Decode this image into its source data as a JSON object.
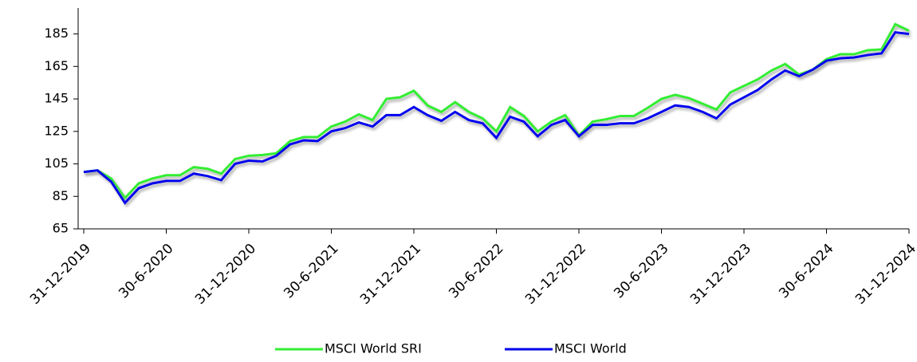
{
  "chart_data": {
    "type": "line",
    "categories": [
      "31-12-2019",
      null,
      null,
      null,
      null,
      null,
      "30-6-2020",
      null,
      null,
      null,
      null,
      null,
      "31-12-2020",
      null,
      null,
      null,
      null,
      null,
      "30-6-2021",
      null,
      null,
      null,
      null,
      null,
      "31-12-2021",
      null,
      null,
      null,
      null,
      null,
      "30-6-2022",
      null,
      null,
      null,
      null,
      null,
      "31-12-2022",
      null,
      null,
      null,
      null,
      null,
      "30-6-2023",
      null,
      null,
      null,
      null,
      null,
      "31-12-2023",
      null,
      null,
      null,
      null,
      null,
      "30-6-2024",
      null,
      null,
      null,
      null,
      null,
      "31-12-2024"
    ],
    "series": [
      {
        "name": "MSCI World SRI",
        "color": "#33ee33",
        "values": [
          100,
          101,
          96,
          84,
          93,
          96,
          98,
          98,
          103,
          102,
          99,
          108,
          110,
          110.5,
          111.5,
          119,
          121.5,
          121.5,
          128,
          131,
          135.5,
          132,
          145,
          146,
          150,
          141,
          137,
          143,
          137,
          133,
          125,
          140,
          134.5,
          125,
          131,
          135,
          122.5,
          131,
          132.5,
          134.5,
          134.5,
          139.5,
          145,
          147.5,
          145.5,
          142,
          138.5,
          149,
          153,
          157,
          162.5,
          166.5,
          160,
          163,
          169.5,
          172.5,
          172.5,
          175,
          175.5,
          191,
          187
        ]
      },
      {
        "name": "MSCI World",
        "color": "#0000ee",
        "values": [
          100,
          101,
          94,
          81,
          90,
          93,
          94.5,
          94.5,
          99,
          97.5,
          95,
          105,
          107,
          106.5,
          110,
          117,
          119.5,
          119,
          125,
          127,
          130.5,
          128,
          135,
          135,
          140,
          135,
          131.5,
          137,
          132,
          130,
          121,
          134,
          131,
          122,
          129,
          132,
          122,
          129,
          129,
          130,
          130,
          133,
          137,
          141,
          140,
          137,
          133,
          141.5,
          146,
          150.5,
          157,
          162.5,
          159,
          163,
          168.5,
          170,
          170.5,
          172,
          173,
          186,
          185
        ]
      }
    ],
    "ylim": [
      65,
      201
    ],
    "yticks": [
      65,
      85,
      105,
      125,
      145,
      165,
      185
    ],
    "legend": "bottom"
  }
}
